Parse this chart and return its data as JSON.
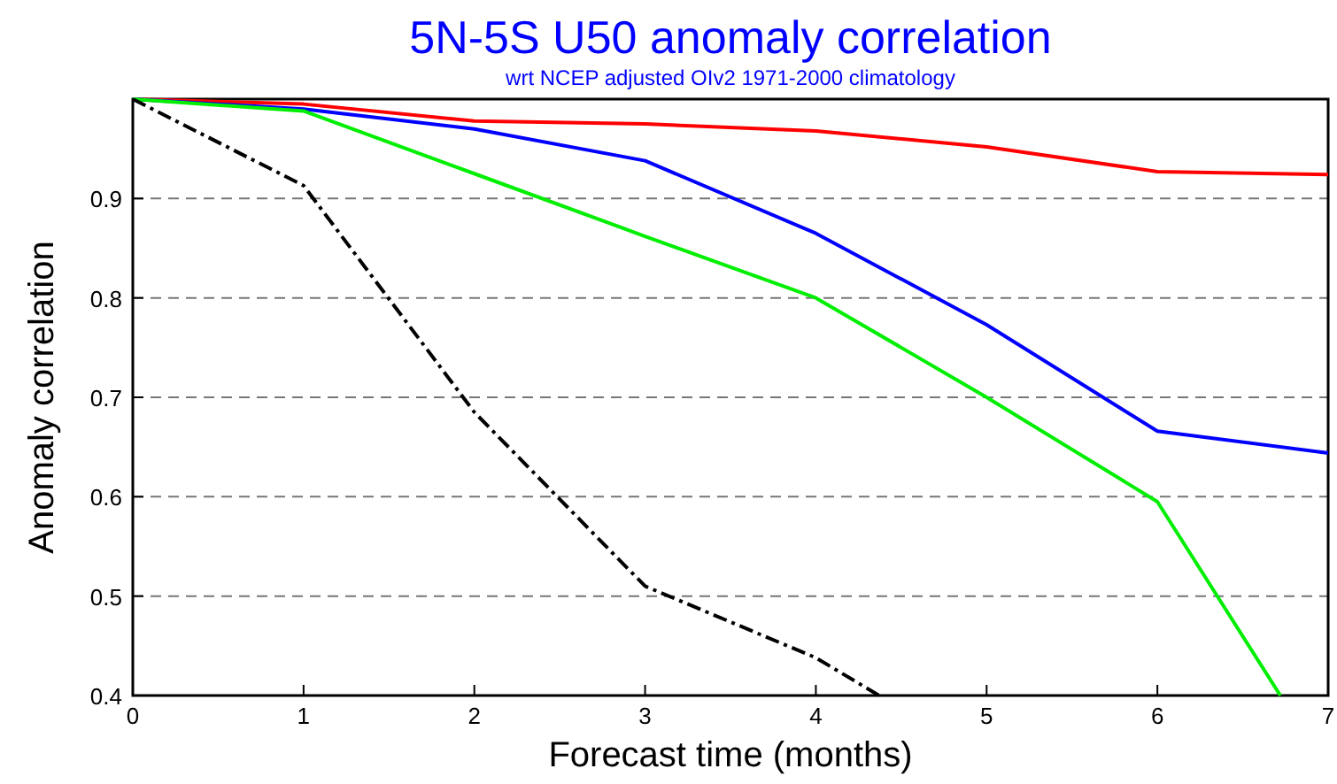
{
  "chart_data": {
    "type": "line",
    "title": "5N-5S U50 anomaly correlation",
    "subtitle": "wrt NCEP adjusted OIv2 1971-2000 climatology",
    "xlabel": "Forecast time (months)",
    "ylabel": "Anomaly correlation",
    "x": [
      0,
      1,
      2,
      3,
      4,
      5,
      6,
      7
    ],
    "series": [
      {
        "color": "#ff0000",
        "values": [
          1.0,
          0.995,
          0.978,
          0.975,
          0.968,
          0.952,
          0.927,
          0.924
        ]
      },
      {
        "color": "#0000ff",
        "values": [
          1.0,
          0.99,
          0.97,
          0.938,
          0.865,
          0.773,
          0.666,
          0.644
        ]
      },
      {
        "color": "#00ee00",
        "x": [
          0,
          1,
          2,
          3,
          4,
          5,
          6,
          6.72
        ],
        "values": [
          1.0,
          0.988,
          0.925,
          0.862,
          0.8,
          0.7,
          0.595,
          0.4
        ]
      },
      {
        "color": "#000000",
        "x": [
          0,
          1,
          2,
          3,
          4,
          4.37
        ],
        "values": [
          1.0,
          0.913,
          0.685,
          0.51,
          0.438,
          0.4
        ],
        "line_style": "dashdot"
      }
    ],
    "xlim": [
      0,
      7
    ],
    "xticks": [
      0,
      1,
      2,
      3,
      4,
      5,
      6,
      7
    ],
    "ylim": [
      0.4,
      1.0
    ],
    "yticks": [
      0.4,
      0.5,
      0.6,
      0.7,
      0.8,
      0.9
    ],
    "grid": "y",
    "marker": "none",
    "line_style": "solid"
  }
}
